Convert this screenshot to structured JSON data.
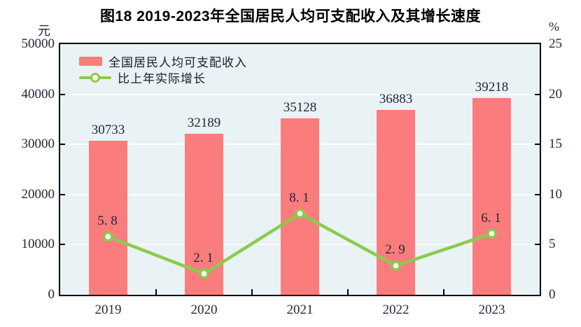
{
  "title": "图18  2019-2023年全国居民人均可支配收入及其增长速度",
  "units": {
    "left": "元",
    "right": "%"
  },
  "legend": {
    "bar_label": "全国居民人均可支配收入",
    "line_label": "比上年实际增长"
  },
  "chart_data": {
    "type": "bar",
    "subtype": "bar+line combo",
    "title": "图18  2019-2023年全国居民人均可支配收入及其增长速度",
    "categories": [
      "2019",
      "2020",
      "2021",
      "2022",
      "2023"
    ],
    "series": [
      {
        "name": "全国居民人均可支配收入",
        "type": "bar",
        "axis": "left",
        "values": [
          30733,
          32189,
          35128,
          36883,
          39218
        ],
        "labels": [
          "30733",
          "32189",
          "35128",
          "36883",
          "39218"
        ],
        "color": "#FA7C7C"
      },
      {
        "name": "比上年实际增长",
        "type": "line",
        "axis": "right",
        "values": [
          5.8,
          2.1,
          8.1,
          2.9,
          6.1
        ],
        "labels": [
          "5. 8",
          "2. 1",
          "8. 1",
          "2. 9",
          "6. 1"
        ],
        "color": "#8BCB4D",
        "marker": {
          "shape": "circle",
          "fill": "#FFFFFF"
        }
      }
    ],
    "left_axis": {
      "unit": "元",
      "min": 0,
      "max": 50000,
      "step": 10000,
      "ticks": [
        "0",
        "10000",
        "20000",
        "30000",
        "40000",
        "50000"
      ]
    },
    "right_axis": {
      "unit": "%",
      "min": 0,
      "max": 25,
      "step": 5,
      "ticks": [
        "0",
        "5",
        "10",
        "15",
        "20",
        "25"
      ]
    },
    "grid": "horizontal white gridlines at each left-axis step",
    "legend_position": "top-left inside plot",
    "colors": {
      "plot_bg": "#E9F2F4",
      "grid": "#FFFFFF",
      "axis": "#000000",
      "text": "#26263A",
      "title_text": "#000000"
    }
  }
}
